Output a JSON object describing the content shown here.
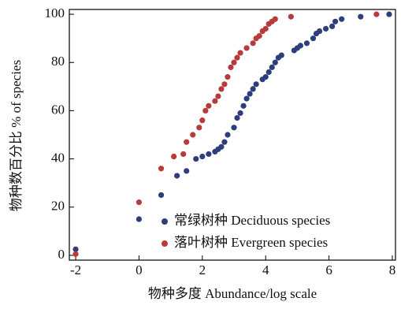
{
  "chart_data": {
    "type": "scatter",
    "xlabel": "物种多度 Abundance/log scale",
    "ylabel": "物种数百分比 % of species",
    "xlim": [
      -2.2,
      8.1
    ],
    "xticks": [
      -2,
      0,
      2,
      4,
      6,
      8
    ],
    "ylim": [
      -2,
      102
    ],
    "yticks": [
      0,
      20,
      40,
      60,
      80,
      100
    ],
    "legend": "lower right",
    "series": [
      {
        "name": "常绿树种 Deciduous species",
        "color": "#2e3d7c",
        "x": [
          -2,
          0,
          0.7,
          1.2,
          1.5,
          1.8,
          2,
          2.2,
          2.4,
          2.5,
          2.6,
          2.7,
          2.8,
          3,
          3.1,
          3.2,
          3.3,
          3.4,
          3.5,
          3.6,
          3.7,
          3.9,
          4,
          4.1,
          4.2,
          4.3,
          4.4,
          4.5,
          4.9,
          5,
          5.1,
          5.3,
          5.5,
          5.6,
          5.7,
          5.9,
          6.1,
          6.2,
          6.4,
          7,
          7.9
        ],
        "values": [
          2.5,
          15,
          25,
          33,
          35,
          40,
          41,
          42,
          43,
          44,
          45,
          47,
          50,
          53,
          57,
          59,
          62,
          65,
          67,
          69,
          71,
          73,
          74,
          76,
          78,
          80,
          82,
          83,
          85,
          86,
          87,
          88,
          90,
          92,
          93,
          94,
          95,
          97,
          98,
          99,
          100
        ]
      },
      {
        "name": "落叶树种 Evergreen species",
        "color": "#b83b3b",
        "x": [
          -2,
          0,
          0.7,
          1.1,
          1.4,
          1.5,
          1.7,
          1.9,
          2,
          2.1,
          2.2,
          2.4,
          2.5,
          2.6,
          2.7,
          2.8,
          2.9,
          3,
          3.1,
          3.2,
          3.4,
          3.6,
          3.7,
          3.8,
          3.9,
          4,
          4.1,
          4.2,
          4.3,
          4.8,
          7.5
        ],
        "values": [
          0.5,
          22,
          36,
          41,
          42,
          47,
          50,
          53,
          56,
          60,
          62,
          64,
          66,
          69,
          71,
          74,
          78,
          80,
          82,
          84,
          86,
          88,
          90,
          91,
          93,
          94,
          96,
          97,
          98,
          99,
          100
        ]
      }
    ]
  }
}
